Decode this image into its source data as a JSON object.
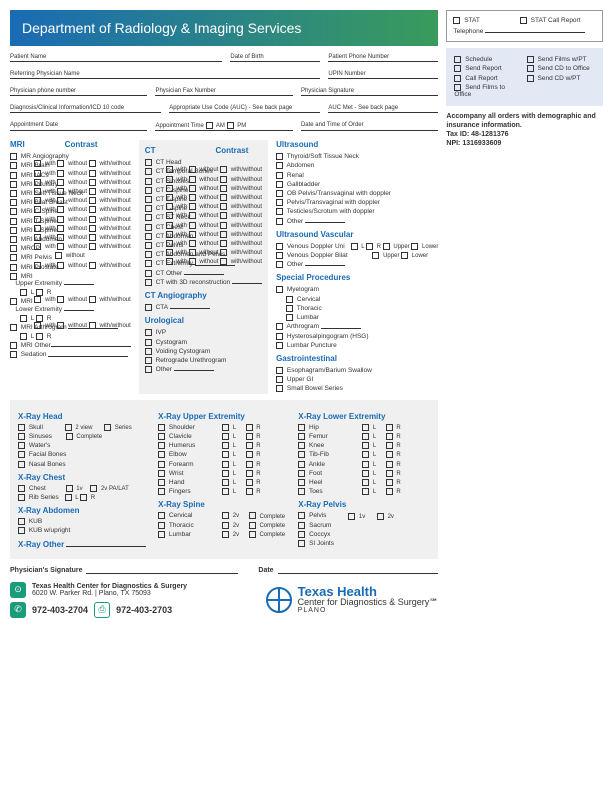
{
  "header": "Department of Radiology & Imaging Services",
  "top": {
    "stat": "STAT",
    "statcall": "STAT Call Report",
    "tel": "Telephone"
  },
  "blue": {
    "schedule": "Schedule",
    "sendrep": "Send Report",
    "callrep": "Call Report",
    "sfoffice": "Send Films to Office",
    "sfpt": "Send Films w/PT",
    "scdoffice": "Send CD to Office",
    "scdpt": "Send CD w/PT"
  },
  "info": {
    "line1": "Accompany all orders with demographic and insurance information.",
    "tax": "Tax ID: 48-1281376",
    "npi": "NPI: 1316933609"
  },
  "fields": {
    "pname": "Patient Name",
    "dob": "Date of Birth",
    "pphone": "Patient Phone Number",
    "refphys": "Referring Physician Name",
    "upin": "UPIN Number",
    "physphone": "Physician phone number",
    "physfax": "Physician Fax Number",
    "physsig": "Physician Signature",
    "diag": "Diagnosis/Clinical Information/ICD 10 code",
    "auc": "Appropriate Use Code (AUC) - See back page",
    "aucmet": "AUC Met - See back page",
    "apptdate": "Appointment Date",
    "appttime": "Appointment Time",
    "am": "AM",
    "pm": "PM",
    "dtorder": "Date and Time of Order"
  },
  "mri": {
    "head": "MRI",
    "contrast": "Contrast",
    "items": [
      "MR Angiography",
      "MRI Brain",
      "MRI IACs",
      "MRI Pituitary",
      "MRI Soft Tissue Neck",
      "MRI Bilat Breast",
      "MRI C-Spine",
      "MRI T-Spine",
      "MRI L-Spine",
      "MRI Abdomen",
      "MRCP",
      "MRI Pelvis",
      "MRI Prostate"
    ],
    "upper": "MRI Upper Extremity",
    "lower": "MRI Lower Extremity",
    "arth": "MRI Arthrogram",
    "other": "MRI Other",
    "sed": "Sedation",
    "l": "L",
    "r": "R",
    "with": "with",
    "without": "without",
    "ww": "with/without"
  },
  "ct": {
    "head": "CT",
    "contrast": "Contrast",
    "items": [
      "CT Head",
      "CT Temporal Bones",
      "CT Sinuses",
      "CT C-spine",
      "CT T-spine",
      "CT L-spine",
      "CT ST Neck",
      "CT Chest",
      "CT Abdomen",
      "CT Pelvis",
      "CT Abdomen and Pelvis"
    ],
    "ext": "CT Extremity",
    "other": "CT Other",
    "3d": "CT with 3D reconstruction",
    "cta": "CT Angiography",
    "ctalabel": "CTA",
    "uro": "Urological",
    "uroitems": [
      "IVP",
      "Cystogram",
      "Voiding Cystogram",
      "Retrograde Urethrogram",
      "Other"
    ]
  },
  "us": {
    "head": "Ultrasound",
    "items": [
      "Thyroid/Soft Tissue Neck",
      "Abdomen",
      "Renal",
      "Gallbladder",
      "OB Pelvis/Transvaginal with doppler",
      "Pelvis/Transvaginal with doppler",
      "Testicles/Scrotum with doppler",
      "Other"
    ],
    "vasc": "Ultrasound Vascular",
    "vdu": "Venous Doppler Uni",
    "vdb": "Venous Doppler Bilat",
    "l": "L",
    "r": "R",
    "upper": "Upper",
    "lower": "Lower",
    "other": "Other",
    "sp": "Special Procedures",
    "myelo": "Myelogram",
    "cerv": "Cervical",
    "thor": "Thoracic",
    "lumb": "Lumbar",
    "arth": "Arthrogram",
    "hsg": "Hysterosalpingogram (HSG)",
    "lp": "Lumbar Puncture",
    "gi": "Gastrointestinal",
    "giitems": [
      "Esophagram/Barium Swallow",
      "Upper GI",
      "Small Bowel Series"
    ]
  },
  "xray": {
    "head": "X-Ray Head",
    "headitems": [
      "Skull",
      "Sinuses",
      "Water's",
      "Facial Bones",
      "Nasal Bones"
    ],
    "v2": "2 view",
    "comp": "Complete",
    "series": "Series",
    "chest": "X-Ray Chest",
    "chestitems": [
      "Chest",
      "Rib Series"
    ],
    "v1": "1v",
    "v2p": "2v PA/LAT",
    "l": "L",
    "r": "R",
    "abd": "X-Ray Abdomen",
    "abditems": [
      "KUB",
      "KUB w/upright"
    ],
    "other": "X-Ray Other",
    "upper": "X-Ray Upper Extremity",
    "upperitems": [
      "Shoulder",
      "Clavicle",
      "Humerus",
      "Elbow",
      "Forearm",
      "Wrist",
      "Hand",
      "Fingers"
    ],
    "spine": "X-Ray Spine",
    "spineitems": [
      "Cervical",
      "Thoracic",
      "Lumbar"
    ],
    "v2s": "2v",
    "compS": "Complete",
    "lowere": "X-Ray Lower Extremity",
    "loweritems": [
      "Hip",
      "Femur",
      "Knee",
      "Tib-Fib",
      "Ankle",
      "Foot",
      "Heel",
      "Toes"
    ],
    "pelvis": "X-Ray Pelvis",
    "pelvisitems": [
      "Pelvis",
      "Sacrum",
      "Coccyx",
      "SI Joints"
    ],
    "v1p": "1v",
    "v2pp": "2v"
  },
  "sig": {
    "phys": "Physician's Signature",
    "date": "Date"
  },
  "foot": {
    "name": "Texas Health Center for Diagnostics & Surgery",
    "addr": "6020 W. Parker Rd. | Plano, TX 75093",
    "ph": "972-403-2704",
    "fax": "972-403-2703",
    "logo1": "Texas Health",
    "logo2": "Center for Diagnostics & Surgery℠",
    "logo3": "PLANO"
  }
}
